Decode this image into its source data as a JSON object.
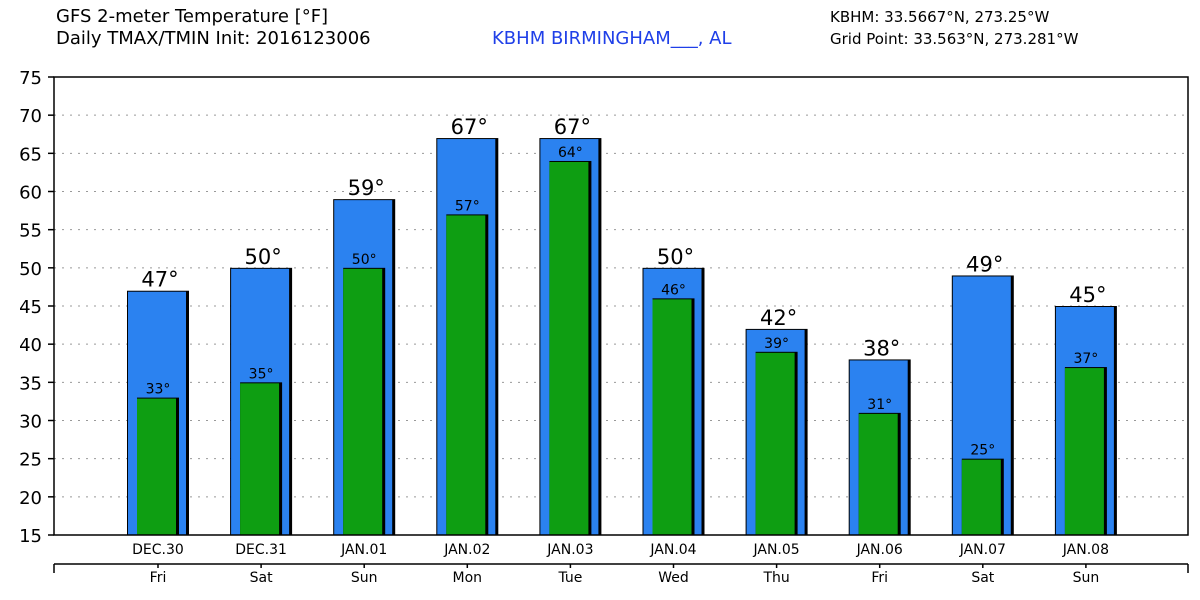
{
  "header": {
    "title_line1": "GFS 2-meter Temperature [°F]",
    "title_line2": "Daily TMAX/TMIN Init: 2016123006",
    "station": "KBHM BIRMINGHAM___, AL",
    "coord_line1": "KBHM: 33.5667°N, 273.25°W",
    "coord_line2": "Grid Point: 33.563°N, 273.281°W"
  },
  "colors": {
    "max_bar": "#2b82f0",
    "min_bar": "#0e9e12",
    "station_text": "#1f3fe8",
    "grid": "#999999"
  },
  "chart_data": {
    "type": "bar",
    "title": "GFS 2-meter Temperature [°F]",
    "ylim": [
      15,
      75
    ],
    "yticks": [
      15,
      20,
      25,
      30,
      35,
      40,
      45,
      50,
      55,
      60,
      65,
      70,
      75
    ],
    "grid": true,
    "categories": [
      "DEC.30",
      "DEC.31",
      "JAN.01",
      "JAN.02",
      "JAN.03",
      "JAN.04",
      "JAN.05",
      "JAN.06",
      "JAN.07",
      "JAN.08"
    ],
    "weekdays": [
      "Fri",
      "Sat",
      "Sun",
      "Mon",
      "Tue",
      "Wed",
      "Thu",
      "Fri",
      "Sat",
      "Sun"
    ],
    "series": [
      {
        "key": "tmax",
        "values": [
          47,
          50,
          59,
          67,
          67,
          50,
          42,
          38,
          49,
          45
        ]
      },
      {
        "key": "tmin",
        "values": [
          33,
          35,
          50,
          57,
          64,
          46,
          39,
          31,
          25,
          37
        ]
      }
    ],
    "value_suffix": "°"
  }
}
